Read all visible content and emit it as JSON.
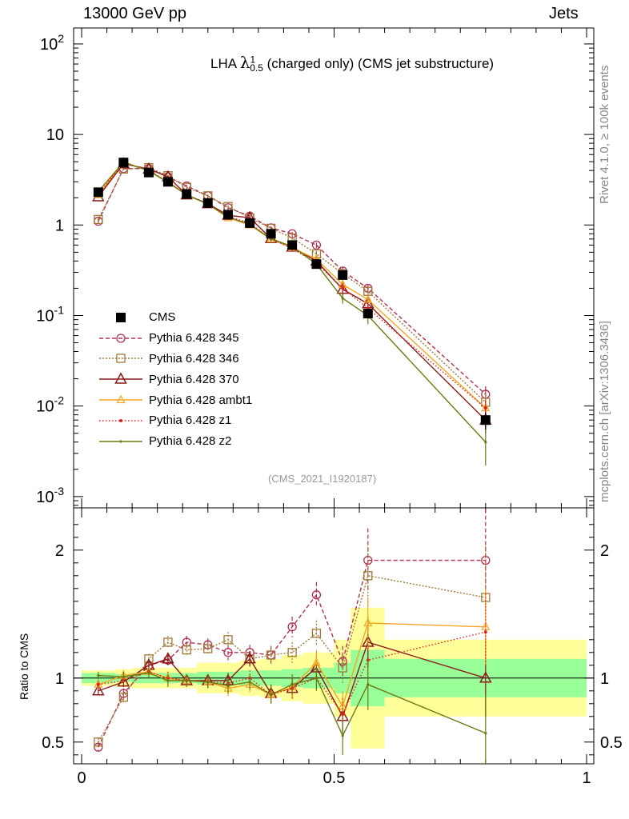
{
  "header": {
    "left": "13000 GeV pp",
    "right": "Jets"
  },
  "side_labels": {
    "rivet": "Rivet 4.1.0, ≥ 100k events",
    "mcplots": "mcplots.cern.ch [arXiv:1306.3436]"
  },
  "title": {
    "prefix": "LHA ",
    "symbol": "λ",
    "sup": "1",
    "sub": "0.5",
    "suffix": " (charged only) (CMS jet substructure)"
  },
  "analysis_id": "(CMS_2021_I1920187)",
  "ratio_ylabel": "Ratio to CMS",
  "chart_data": [
    {
      "type": "line",
      "panel": "main",
      "yscale": "log",
      "xlim": [
        0,
        1
      ],
      "ylim": [
        0.00075,
        150
      ],
      "y_tick_labels": [
        {
          "v": 0.001,
          "b": "10",
          "e": "-3"
        },
        {
          "v": 0.01,
          "b": "10",
          "e": "-2"
        },
        {
          "v": 0.1,
          "b": "10",
          "e": "-1"
        },
        {
          "v": 1,
          "b": "1",
          "e": ""
        },
        {
          "v": 10,
          "b": "10",
          "e": ""
        },
        {
          "v": 100,
          "b": "10",
          "e": "2"
        }
      ],
      "x": [
        0.033,
        0.083,
        0.133,
        0.171,
        0.208,
        0.25,
        0.29,
        0.333,
        0.375,
        0.417,
        0.465,
        0.517,
        0.567,
        0.8
      ],
      "series": [
        {
          "name": "CMS",
          "color": "#000000",
          "marker": "square",
          "dash": "",
          "values": [
            2.3,
            4.9,
            3.8,
            3.0,
            2.2,
            1.75,
            1.3,
            1.05,
            0.8,
            0.6,
            0.37,
            0.28,
            0.105,
            0.007
          ],
          "errors": [
            0.1,
            0.2,
            0.15,
            0.12,
            0.1,
            0.08,
            0.06,
            0.05,
            0.04,
            0.03,
            0.025,
            0.02,
            0.012,
            0.0015
          ]
        },
        {
          "name": "Pythia 6.428 345",
          "color": "#b03050",
          "marker": "circle",
          "dash": "5,3",
          "values": [
            1.1,
            4.2,
            4.2,
            3.4,
            2.7,
            2.1,
            1.55,
            1.25,
            0.93,
            0.8,
            0.6,
            0.31,
            0.2,
            0.0135
          ],
          "errors": [
            0.05,
            0.1,
            0.1,
            0.1,
            0.08,
            0.06,
            0.05,
            0.04,
            0.04,
            0.04,
            0.04,
            0.03,
            0.02,
            0.003
          ]
        },
        {
          "name": "Pythia 6.428 346",
          "color": "#a07838",
          "marker": "square-open",
          "dash": "2,2",
          "values": [
            1.15,
            4.15,
            4.3,
            3.5,
            2.6,
            2.1,
            1.6,
            1.2,
            0.92,
            0.72,
            0.48,
            0.29,
            0.185,
            0.011
          ],
          "errors": [
            0.05,
            0.1,
            0.1,
            0.1,
            0.08,
            0.06,
            0.05,
            0.04,
            0.04,
            0.04,
            0.04,
            0.03,
            0.02,
            0.003
          ]
        },
        {
          "name": "Pythia 6.428 370",
          "color": "#8b1a1a",
          "marker": "triangle",
          "dash": "",
          "values": [
            2.05,
            4.75,
            4.15,
            3.4,
            2.15,
            1.72,
            1.28,
            1.2,
            0.71,
            0.57,
            0.4,
            0.195,
            0.135,
            0.007
          ],
          "errors": [
            0.05,
            0.1,
            0.1,
            0.1,
            0.08,
            0.06,
            0.05,
            0.04,
            0.04,
            0.04,
            0.04,
            0.03,
            0.02,
            0.002
          ]
        },
        {
          "name": "Pythia 6.428 ambt1",
          "color": "#f5a623",
          "marker": "triangle-small",
          "dash": "",
          "values": [
            2.15,
            5.0,
            3.95,
            3.0,
            2.15,
            1.7,
            1.2,
            1.0,
            0.7,
            0.56,
            0.42,
            0.22,
            0.15,
            0.0095
          ],
          "errors": [
            0.05,
            0.1,
            0.1,
            0.1,
            0.08,
            0.06,
            0.05,
            0.04,
            0.04,
            0.04,
            0.04,
            0.03,
            0.02,
            0.002
          ]
        },
        {
          "name": "Pythia 6.428 z1",
          "color": "#e02020",
          "marker": "dot",
          "dash": "1.5,2.5",
          "values": [
            2.2,
            4.85,
            4.0,
            3.0,
            2.15,
            1.7,
            1.25,
            1.05,
            0.7,
            0.55,
            0.38,
            0.2,
            0.12,
            0.0095
          ],
          "errors": [
            0.05,
            0.1,
            0.1,
            0.1,
            0.08,
            0.06,
            0.05,
            0.04,
            0.04,
            0.04,
            0.04,
            0.03,
            0.02,
            0.002
          ]
        },
        {
          "name": "Pythia 6.428 z2",
          "color": "#6b7a10",
          "marker": "dot-small",
          "dash": "",
          "values": [
            2.35,
            4.95,
            3.95,
            2.95,
            2.15,
            1.7,
            1.22,
            1.02,
            0.7,
            0.58,
            0.37,
            0.155,
            0.1,
            0.004
          ],
          "errors": [
            0.05,
            0.1,
            0.1,
            0.1,
            0.08,
            0.06,
            0.05,
            0.04,
            0.04,
            0.04,
            0.04,
            0.02,
            0.02,
            0.0018
          ]
        }
      ]
    },
    {
      "type": "line",
      "panel": "ratio",
      "ylabel": "Ratio to CMS",
      "xlim": [
        0,
        1
      ],
      "ylim": [
        0.33,
        2.33
      ],
      "y_ticks": [
        0.5,
        1,
        2
      ],
      "y_tick_labels": [
        "0.5",
        "1",
        "2"
      ],
      "x_ticks": [
        0,
        0.5,
        1
      ],
      "x_tick_labels": [
        "0",
        "0.5",
        "1"
      ],
      "bands": {
        "edges": [
          0.0,
          0.067,
          0.1,
          0.146,
          0.188,
          0.229,
          0.271,
          0.313,
          0.354,
          0.396,
          0.438,
          0.5,
          0.533,
          0.6,
          1.0
        ],
        "stat": [
          0.04,
          0.03,
          0.04,
          0.04,
          0.04,
          0.05,
          0.05,
          0.06,
          0.06,
          0.07,
          0.08,
          0.12,
          0.22,
          0.15
        ],
        "total": [
          0.06,
          0.07,
          0.08,
          0.08,
          0.08,
          0.12,
          0.12,
          0.14,
          0.15,
          0.18,
          0.2,
          0.3,
          0.55,
          0.3
        ]
      },
      "series": [
        {
          "name": "Pythia 6.428 345",
          "values": [
            0.46,
            0.88,
            1.1,
            1.14,
            1.28,
            1.26,
            1.2,
            1.2,
            1.18,
            1.4,
            1.65,
            1.13,
            1.92,
            1.92
          ],
          "errors": [
            0.03,
            0.04,
            0.04,
            0.05,
            0.05,
            0.05,
            0.06,
            0.06,
            0.07,
            0.08,
            0.1,
            0.12,
            0.25,
            0.4
          ]
        },
        {
          "name": "Pythia 6.428 346",
          "values": [
            0.5,
            0.85,
            1.15,
            1.28,
            1.22,
            1.23,
            1.3,
            1.15,
            1.18,
            1.2,
            1.35,
            1.08,
            1.8,
            1.63
          ],
          "errors": [
            0.03,
            0.04,
            0.04,
            0.05,
            0.05,
            0.05,
            0.06,
            0.06,
            0.07,
            0.08,
            0.1,
            0.12,
            0.25,
            0.4
          ]
        },
        {
          "name": "Pythia 6.428 370",
          "values": [
            0.9,
            0.97,
            1.1,
            1.15,
            0.98,
            0.98,
            0.98,
            1.15,
            0.88,
            0.92,
            1.08,
            0.7,
            1.28,
            1.0
          ],
          "errors": [
            0.03,
            0.04,
            0.04,
            0.05,
            0.05,
            0.05,
            0.06,
            0.06,
            0.07,
            0.08,
            0.1,
            0.12,
            0.2,
            0.3
          ]
        },
        {
          "name": "Pythia 6.428 ambt1",
          "values": [
            0.95,
            1.02,
            1.05,
            1.0,
            0.98,
            0.97,
            0.92,
            0.95,
            0.87,
            0.93,
            1.12,
            0.78,
            1.43,
            1.4
          ],
          "errors": [
            0.03,
            0.04,
            0.04,
            0.05,
            0.05,
            0.05,
            0.06,
            0.06,
            0.07,
            0.08,
            0.1,
            0.12,
            0.2,
            0.3
          ]
        },
        {
          "name": "Pythia 6.428 z1",
          "values": [
            0.95,
            0.98,
            1.05,
            1.0,
            0.98,
            0.97,
            0.96,
            1.0,
            0.87,
            0.92,
            1.0,
            0.72,
            1.14,
            1.36
          ],
          "errors": [
            0.03,
            0.04,
            0.04,
            0.05,
            0.05,
            0.05,
            0.06,
            0.06,
            0.07,
            0.08,
            0.1,
            0.12,
            0.2,
            0.3
          ]
        },
        {
          "name": "Pythia 6.428 z2",
          "values": [
            1.02,
            1.01,
            1.04,
            0.98,
            0.98,
            0.97,
            0.94,
            0.97,
            0.87,
            0.95,
            1.0,
            0.55,
            0.95,
            0.57
          ],
          "errors": [
            0.03,
            0.04,
            0.04,
            0.05,
            0.05,
            0.05,
            0.06,
            0.06,
            0.07,
            0.08,
            0.1,
            0.15,
            0.2,
            0.3
          ]
        }
      ]
    }
  ]
}
